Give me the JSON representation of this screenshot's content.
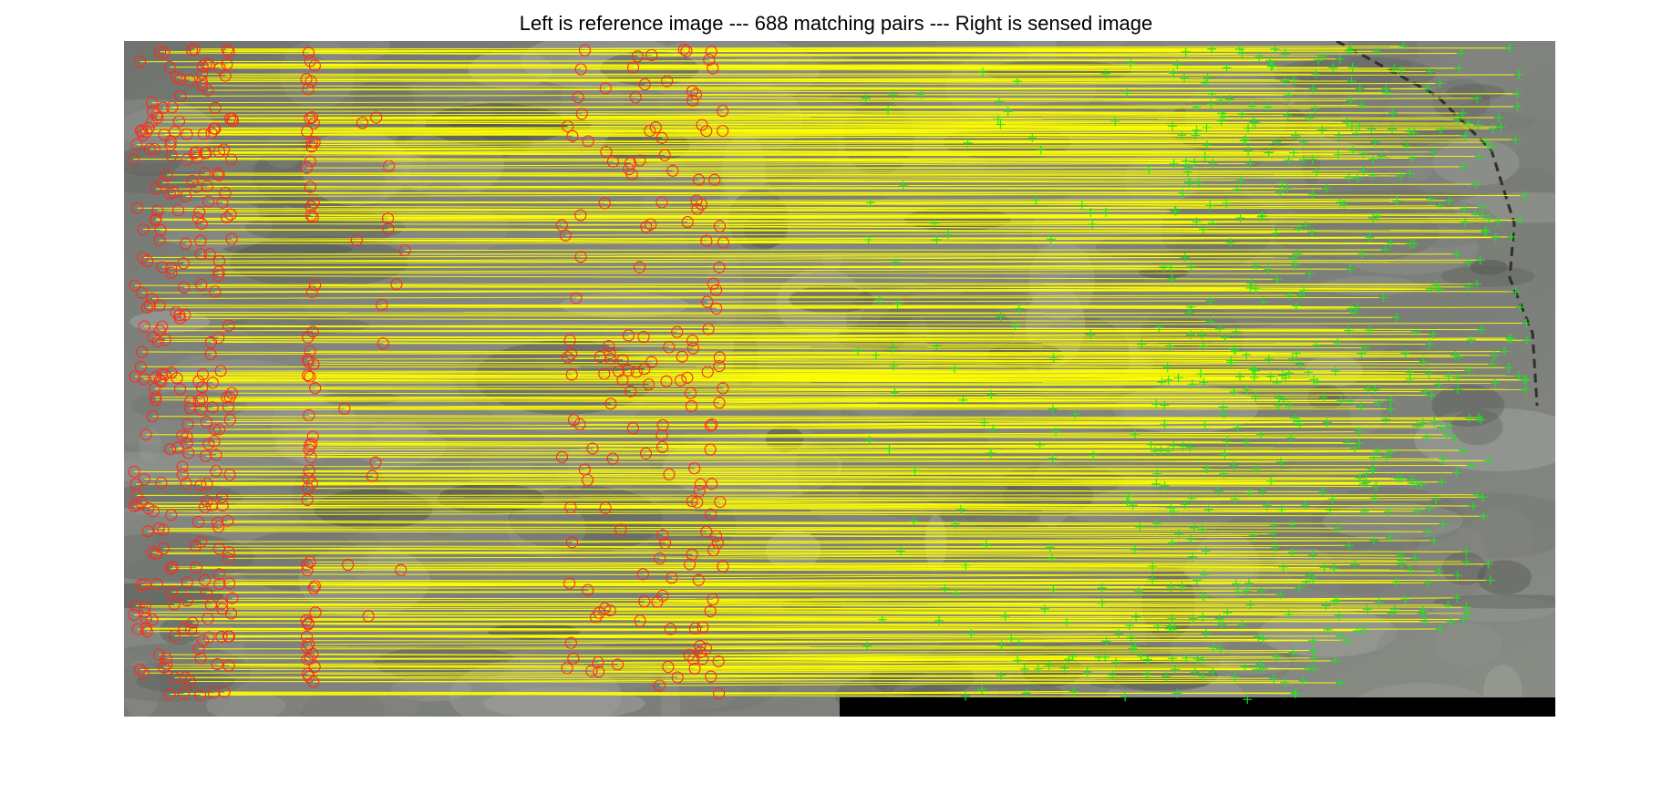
{
  "figure": {
    "title": "Left is reference image --- 688 matching pairs --- Right is sensed image"
  },
  "colors": {
    "background": "#ffffff",
    "imagery_gray": "#7c7f79",
    "match_lines": "#ffff00",
    "reference_markers": "#ff2a1a",
    "sensed_markers": "#1fe51f",
    "nodata_band": "#000000"
  },
  "content": {
    "left_image": "reference satellite image (grayscale aerial terrain)",
    "right_image": "sensed satellite image (grayscale aerial terrain)",
    "match_count": 688,
    "reference_marker_shape": "circle",
    "sensed_marker_shape": "plus",
    "line_color_name": "yellow"
  }
}
